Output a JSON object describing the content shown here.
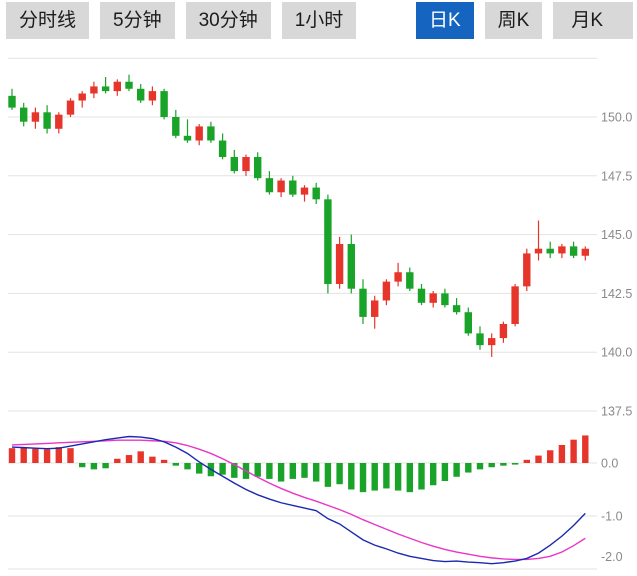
{
  "tabbar": {
    "items": [
      {
        "label": "分时线",
        "active": false
      },
      {
        "label": "5分钟",
        "active": false
      },
      {
        "label": "30分钟",
        "active": false
      },
      {
        "label": "1小时",
        "active": false
      },
      {
        "label": "日K",
        "active": true
      },
      {
        "label": "周K",
        "active": false
      },
      {
        "label": "月K",
        "active": false
      }
    ]
  },
  "colors": {
    "active_tab_bg": "#1565c0",
    "tab_bg": "#d8d8d8",
    "up": "#e6352b",
    "down": "#19a329",
    "dif_line": "#1a2ab0",
    "dea_line": "#ea35c9",
    "grid": "#e3e3e3",
    "axis_text": "#8a8a8a"
  },
  "chart_data": {
    "type": "candlestick",
    "title": "",
    "legend": [],
    "up_color": "#e6352b",
    "down_color": "#19a329",
    "dif_color": "#1a2ab0",
    "dea_color": "#ea35c9",
    "price_pane": {
      "ylabels": [
        "150.0",
        "147.5",
        "145.0",
        "142.5",
        "140.0",
        "137.5"
      ],
      "grid_levels": [
        152.5,
        150.0,
        147.5,
        145.0,
        142.5,
        140.0,
        137.5
      ],
      "ymin": 137.0,
      "ymax": 152.6,
      "candles": [
        [
          150.9,
          151.2,
          150.3,
          150.4
        ],
        [
          150.4,
          150.6,
          149.6,
          149.8
        ],
        [
          149.8,
          150.4,
          149.5,
          150.2
        ],
        [
          150.2,
          150.5,
          149.3,
          149.5
        ],
        [
          149.5,
          150.2,
          149.3,
          150.1
        ],
        [
          150.1,
          150.8,
          150.0,
          150.7
        ],
        [
          150.7,
          151.1,
          150.4,
          151.0
        ],
        [
          151.0,
          151.5,
          150.8,
          151.3
        ],
        [
          151.3,
          151.7,
          151.0,
          151.1
        ],
        [
          151.1,
          151.6,
          150.9,
          151.5
        ],
        [
          151.5,
          151.8,
          151.1,
          151.2
        ],
        [
          151.2,
          151.4,
          150.6,
          150.7
        ],
        [
          150.7,
          151.3,
          150.5,
          151.1
        ],
        [
          151.1,
          151.2,
          149.9,
          150.0
        ],
        [
          150.0,
          150.3,
          149.1,
          149.2
        ],
        [
          149.2,
          149.9,
          148.9,
          149.0
        ],
        [
          149.0,
          149.7,
          148.8,
          149.6
        ],
        [
          149.6,
          149.8,
          148.9,
          149.0
        ],
        [
          149.0,
          149.3,
          148.2,
          148.3
        ],
        [
          148.3,
          148.6,
          147.6,
          147.7
        ],
        [
          147.7,
          148.4,
          147.5,
          148.3
        ],
        [
          148.3,
          148.5,
          147.3,
          147.4
        ],
        [
          147.4,
          147.7,
          146.7,
          146.8
        ],
        [
          146.8,
          147.4,
          146.6,
          147.3
        ],
        [
          147.3,
          147.5,
          146.6,
          146.7
        ],
        [
          146.7,
          147.1,
          146.4,
          147.0
        ],
        [
          147.0,
          147.2,
          146.3,
          146.5
        ],
        [
          146.5,
          146.7,
          142.5,
          142.9
        ],
        [
          142.9,
          144.9,
          142.7,
          144.6
        ],
        [
          144.6,
          145.0,
          142.5,
          142.7
        ],
        [
          142.7,
          143.1,
          141.2,
          141.5
        ],
        [
          141.5,
          142.4,
          141.0,
          142.2
        ],
        [
          142.2,
          143.1,
          142.0,
          143.0
        ],
        [
          143.0,
          143.8,
          142.8,
          143.4
        ],
        [
          143.4,
          143.6,
          142.6,
          142.7
        ],
        [
          142.7,
          142.9,
          142.0,
          142.1
        ],
        [
          142.1,
          142.6,
          141.9,
          142.5
        ],
        [
          142.5,
          142.7,
          141.9,
          142.0
        ],
        [
          142.0,
          142.3,
          141.6,
          141.7
        ],
        [
          141.7,
          141.9,
          140.7,
          140.8
        ],
        [
          140.8,
          141.1,
          140.1,
          140.3
        ],
        [
          140.3,
          140.8,
          139.8,
          140.6
        ],
        [
          140.6,
          141.3,
          140.4,
          141.2
        ],
        [
          141.2,
          142.9,
          141.1,
          142.8
        ],
        [
          142.8,
          144.4,
          142.6,
          144.2
        ],
        [
          144.2,
          145.6,
          143.9,
          144.4
        ],
        [
          144.4,
          144.7,
          144.0,
          144.2
        ],
        [
          144.2,
          144.6,
          144.0,
          144.5
        ],
        [
          144.5,
          144.7,
          144.0,
          144.1
        ],
        [
          144.1,
          144.5,
          143.9,
          144.4
        ]
      ]
    },
    "macd_pane": {
      "ylabels": [
        "0.0",
        "-1.0",
        "-2.0"
      ],
      "grid_levels": [
        0.0,
        -1.0,
        -2.0
      ],
      "ymin": -2.15,
      "ymax": 0.7,
      "histogram": [
        0.28,
        0.3,
        0.27,
        0.26,
        0.3,
        0.28,
        -0.08,
        -0.12,
        -0.1,
        0.08,
        0.15,
        0.22,
        0.12,
        0.06,
        -0.05,
        -0.12,
        -0.2,
        -0.25,
        -0.22,
        -0.28,
        -0.3,
        -0.26,
        -0.3,
        -0.35,
        -0.3,
        -0.28,
        -0.35,
        -0.45,
        -0.4,
        -0.5,
        -0.55,
        -0.52,
        -0.48,
        -0.52,
        -0.55,
        -0.5,
        -0.42,
        -0.34,
        -0.26,
        -0.18,
        -0.12,
        -0.08,
        -0.05,
        -0.03,
        0.06,
        0.14,
        0.24,
        0.34,
        0.44,
        0.52
      ],
      "dif": [
        0.3,
        0.29,
        0.28,
        0.27,
        0.28,
        0.32,
        0.36,
        0.4,
        0.44,
        0.47,
        0.5,
        0.49,
        0.46,
        0.4,
        0.3,
        0.18,
        0.02,
        -0.12,
        -0.25,
        -0.38,
        -0.5,
        -0.6,
        -0.68,
        -0.75,
        -0.8,
        -0.85,
        -0.9,
        -1.05,
        -1.15,
        -1.3,
        -1.45,
        -1.55,
        -1.62,
        -1.7,
        -1.76,
        -1.8,
        -1.84,
        -1.86,
        -1.85,
        -1.87,
        -1.88,
        -1.9,
        -1.88,
        -1.85,
        -1.8,
        -1.7,
        -1.55,
        -1.38,
        -1.18,
        -0.95
      ],
      "dea": [
        0.34,
        0.35,
        0.36,
        0.37,
        0.38,
        0.39,
        0.4,
        0.41,
        0.42,
        0.43,
        0.43,
        0.43,
        0.42,
        0.41,
        0.38,
        0.33,
        0.26,
        0.18,
        0.08,
        -0.03,
        -0.15,
        -0.27,
        -0.38,
        -0.48,
        -0.57,
        -0.65,
        -0.72,
        -0.8,
        -0.88,
        -0.97,
        -1.07,
        -1.16,
        -1.25,
        -1.34,
        -1.42,
        -1.5,
        -1.57,
        -1.63,
        -1.68,
        -1.72,
        -1.76,
        -1.79,
        -1.81,
        -1.82,
        -1.82,
        -1.8,
        -1.76,
        -1.68,
        -1.56,
        -1.42
      ]
    }
  }
}
